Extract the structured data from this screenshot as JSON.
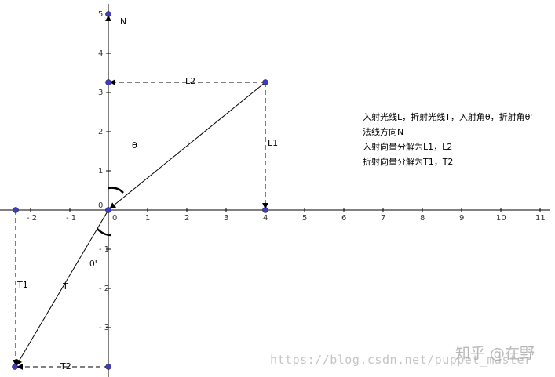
{
  "x_tick_labels": [
    "- 2",
    "- 1",
    "0",
    "1",
    "2",
    "3",
    "4",
    "5",
    "6",
    "7",
    "8",
    "9",
    "10",
    "11"
  ],
  "y_tick_labels": [
    "5",
    "4",
    "3",
    "2",
    "1",
    "0",
    "- 1",
    "- 2",
    "- 3"
  ],
  "labels": {
    "N": "N",
    "L": "L",
    "L1": "L1",
    "L2": "L2",
    "T": "T",
    "T1": "T1",
    "T2": "T2",
    "theta": "θ",
    "theta_prime": "θ'"
  },
  "notes": [
    "入射光线L，折射光线T，入射角θ，折射角θ'",
    "法线方向N",
    "入射向量分解为L1，L2",
    "折射向量分解为T1，T2"
  ],
  "watermark": {
    "url": "https://blog.csdn.net/puppet_master",
    "zhihu": "知乎 @在野"
  },
  "points": {
    "L_tip": [
      4,
      3.25
    ],
    "T_tip": [
      -2.4,
      -4
    ]
  },
  "colors": {
    "point_fill": "#3c3cc8",
    "line": "#000000"
  }
}
